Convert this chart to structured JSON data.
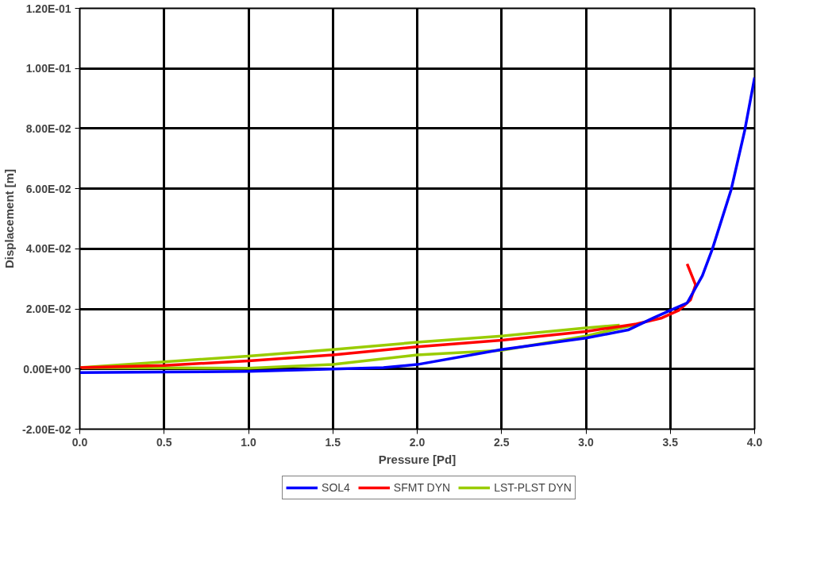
{
  "chart_data": {
    "type": "line",
    "xlabel": "Pressure [Pd]",
    "ylabel": "Displacement [m]",
    "xlim": [
      0,
      4
    ],
    "ylim": [
      -0.02,
      0.12
    ],
    "xticks": [
      {
        "value": 0,
        "label": "0.0"
      },
      {
        "value": 0.5,
        "label": "0.5"
      },
      {
        "value": 1,
        "label": "1.0"
      },
      {
        "value": 1.5,
        "label": "1.5"
      },
      {
        "value": 2,
        "label": "2.0"
      },
      {
        "value": 2.5,
        "label": "2.5"
      },
      {
        "value": 3,
        "label": "3.0"
      },
      {
        "value": 3.5,
        "label": "3.5"
      },
      {
        "value": 4,
        "label": "4.0"
      }
    ],
    "yticks": [
      {
        "value": -0.02,
        "label": "-2.00E-02"
      },
      {
        "value": 0,
        "label": "0.00E+00"
      },
      {
        "value": 0.02,
        "label": "2.00E-02"
      },
      {
        "value": 0.04,
        "label": "4.00E-02"
      },
      {
        "value": 0.06,
        "label": "6.00E-02"
      },
      {
        "value": 0.08,
        "label": "8.00E-02"
      },
      {
        "value": 0.1,
        "label": "1.00E-01"
      },
      {
        "value": 0.12,
        "label": "1.20E-01"
      }
    ],
    "grid": true,
    "legend": "bottom",
    "marker": "none",
    "line_style": "solid",
    "series": [
      {
        "name": "SOL4",
        "color": "#0000ff",
        "x": [
          0,
          0.5,
          1.0,
          1.5,
          1.8,
          2.0,
          2.5,
          3.0,
          3.25,
          3.4,
          3.5,
          3.6,
          3.69,
          3.75,
          3.86,
          3.94,
          4.0
        ],
        "values": [
          -0.0012,
          -0.001,
          -0.0008,
          0.0,
          0.0005,
          0.0015,
          0.0065,
          0.0103,
          0.013,
          0.017,
          0.0195,
          0.022,
          0.031,
          0.04,
          0.0595,
          0.079,
          0.097
        ]
      },
      {
        "name": "SFMT DYN",
        "color": "#ff0000",
        "x": [
          0,
          0.5,
          1.0,
          1.5,
          2.0,
          2.5,
          3.0,
          3.3,
          3.45,
          3.55,
          3.62,
          3.65,
          3.6
        ],
        "values": [
          0.0005,
          0.0012,
          0.0027,
          0.0047,
          0.0074,
          0.0096,
          0.0125,
          0.015,
          0.017,
          0.0195,
          0.023,
          0.028,
          0.035
        ]
      },
      {
        "name": "LST-PLST DYN",
        "color": "#99cc00",
        "x": [
          0,
          0.5,
          1.0,
          1.5,
          2.0,
          2.5,
          3.0,
          3.31
        ],
        "values": [
          0.0005,
          0.0004,
          0.0003,
          0.0015,
          0.0047,
          0.0062,
          0.011,
          0.015
        ]
      },
      {
        "color": "#99cc00",
        "x": [
          0,
          0.5,
          1.0,
          1.5,
          2.0,
          2.5,
          3.0,
          3.2
        ],
        "values": [
          0.0005,
          0.0024,
          0.0043,
          0.0065,
          0.0089,
          0.011,
          0.0137,
          0.0146
        ]
      }
    ]
  }
}
